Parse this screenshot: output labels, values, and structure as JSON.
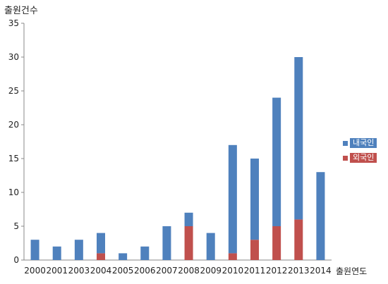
{
  "chart_data": {
    "type": "bar",
    "stacked": true,
    "ylabel": "출원건수",
    "xlabel": "출원연도",
    "ylim": [
      0,
      35
    ],
    "yticks": [
      0,
      5,
      10,
      15,
      20,
      25,
      30,
      35
    ],
    "grid": false,
    "legend_position": "right",
    "categories": [
      "2000",
      "2001",
      "2003",
      "2004",
      "2005",
      "2006",
      "2007",
      "2008",
      "2009",
      "2010",
      "2011",
      "2012",
      "2013",
      "2014"
    ],
    "series": [
      {
        "name": "외국인",
        "color": "#c0504d",
        "values": [
          0,
          0,
          0,
          1,
          0,
          0,
          0,
          5,
          0,
          1,
          3,
          5,
          6,
          0
        ]
      },
      {
        "name": "내국인",
        "color": "#4f81bd",
        "values": [
          3,
          2,
          3,
          3,
          1,
          2,
          5,
          2,
          4,
          16,
          12,
          19,
          24,
          13
        ]
      }
    ]
  }
}
